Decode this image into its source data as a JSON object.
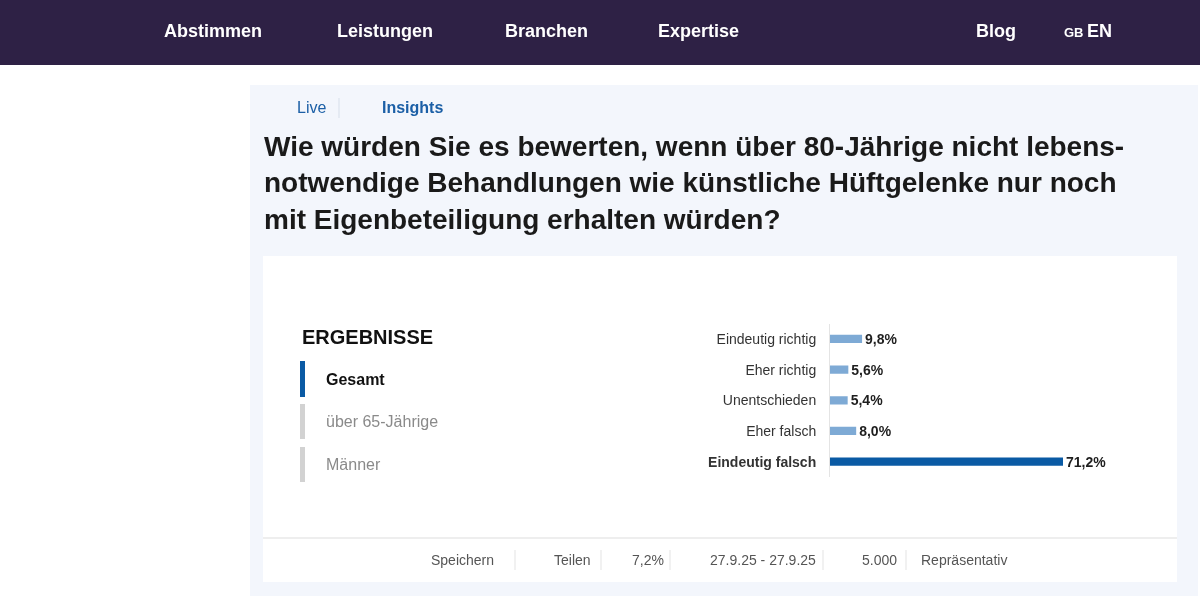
{
  "chart_data": {
    "type": "bar",
    "orientation": "horizontal",
    "title": "Wie würden Sie es bewerten, wenn über 80-Jährige nicht lebens-\nnotwendige Behandlungen wie künstliche Hüftgelenke nur noch\nmit Eigenbeteiligung erhalten würden?",
    "categories": [
      "Eindeutig richtig",
      "Eher richtig",
      "Unentschieden",
      "Eher falsch",
      "Eindeutig falsch"
    ],
    "values": [
      9.8,
      5.6,
      5.4,
      8.0,
      71.2
    ],
    "value_labels": [
      "9,8%",
      "5,6%",
      "5,4%",
      "8,0%",
      "71,2%"
    ],
    "colors": [
      "#7eaad5",
      "#7eaad5",
      "#7eaad5",
      "#7eaad5",
      "#0a5aa4"
    ],
    "annotations": [
      "Abstimmen",
      "Leistungen",
      "Branchen",
      "Expertise",
      "Blog",
      "GB",
      "EN",
      "Live",
      "Insights",
      "ERGEBNISSE",
      "Gesamt",
      "über 65-Jährige",
      "Männer",
      "Speichern",
      "Teilen",
      "7,2%",
      "27.9.25 - 27.9.25",
      "5.000",
      "Repräsentativ"
    ]
  }
}
